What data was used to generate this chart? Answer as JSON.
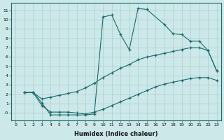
{
  "xlabel": "Humidex (Indice chaleur)",
  "ylabel": "",
  "bg_color": "#cce8e8",
  "grid_color": "#aacfcf",
  "line_color": "#1a6b6b",
  "xlim": [
    -0.5,
    23.5
  ],
  "ylim": [
    -0.8,
    11.8
  ],
  "xticks": [
    0,
    1,
    2,
    3,
    4,
    5,
    6,
    7,
    8,
    9,
    10,
    11,
    12,
    13,
    14,
    15,
    16,
    17,
    18,
    19,
    20,
    21,
    22,
    23
  ],
  "yticks": [
    0,
    1,
    2,
    3,
    4,
    5,
    6,
    7,
    8,
    9,
    10,
    11
  ],
  "ytick_labels": [
    "-0",
    "1",
    "2",
    "3",
    "4",
    "5",
    "6",
    "7",
    "8",
    "9",
    "10",
    "11"
  ],
  "curve1_x": [
    1,
    2,
    3,
    4,
    5,
    6,
    7,
    8,
    9,
    10,
    11,
    12,
    13,
    14,
    15,
    17,
    18,
    19,
    20,
    21,
    22,
    23
  ],
  "curve1_y": [
    2.2,
    2.2,
    1.1,
    -0.2,
    -0.2,
    -0.2,
    -0.2,
    -0.2,
    -0.1,
    10.3,
    10.5,
    8.4,
    6.8,
    11.2,
    11.1,
    9.5,
    8.5,
    8.4,
    7.7,
    7.7,
    6.7,
    4.5
  ],
  "curve2_x": [
    1,
    2,
    3,
    4,
    5,
    6,
    7,
    8,
    9,
    10,
    11,
    12,
    13,
    14,
    15,
    16,
    17,
    18,
    19,
    20,
    21,
    22,
    23
  ],
  "curve2_y": [
    2.2,
    2.2,
    1.5,
    1.7,
    1.9,
    2.1,
    2.3,
    2.7,
    3.2,
    3.8,
    4.3,
    4.8,
    5.2,
    5.7,
    6.0,
    6.2,
    6.4,
    6.6,
    6.8,
    7.0,
    7.0,
    6.7,
    4.5
  ],
  "curve3_x": [
    1,
    2,
    3,
    4,
    5,
    6,
    7,
    8,
    9,
    10,
    11,
    12,
    13,
    14,
    15,
    16,
    17,
    18,
    19,
    20,
    21,
    22,
    23
  ],
  "curve3_y": [
    2.2,
    2.2,
    0.8,
    0.1,
    0.1,
    0.1,
    0.0,
    -0.1,
    0.1,
    0.4,
    0.8,
    1.2,
    1.6,
    2.0,
    2.4,
    2.8,
    3.1,
    3.3,
    3.5,
    3.7,
    3.8,
    3.8,
    3.5
  ]
}
